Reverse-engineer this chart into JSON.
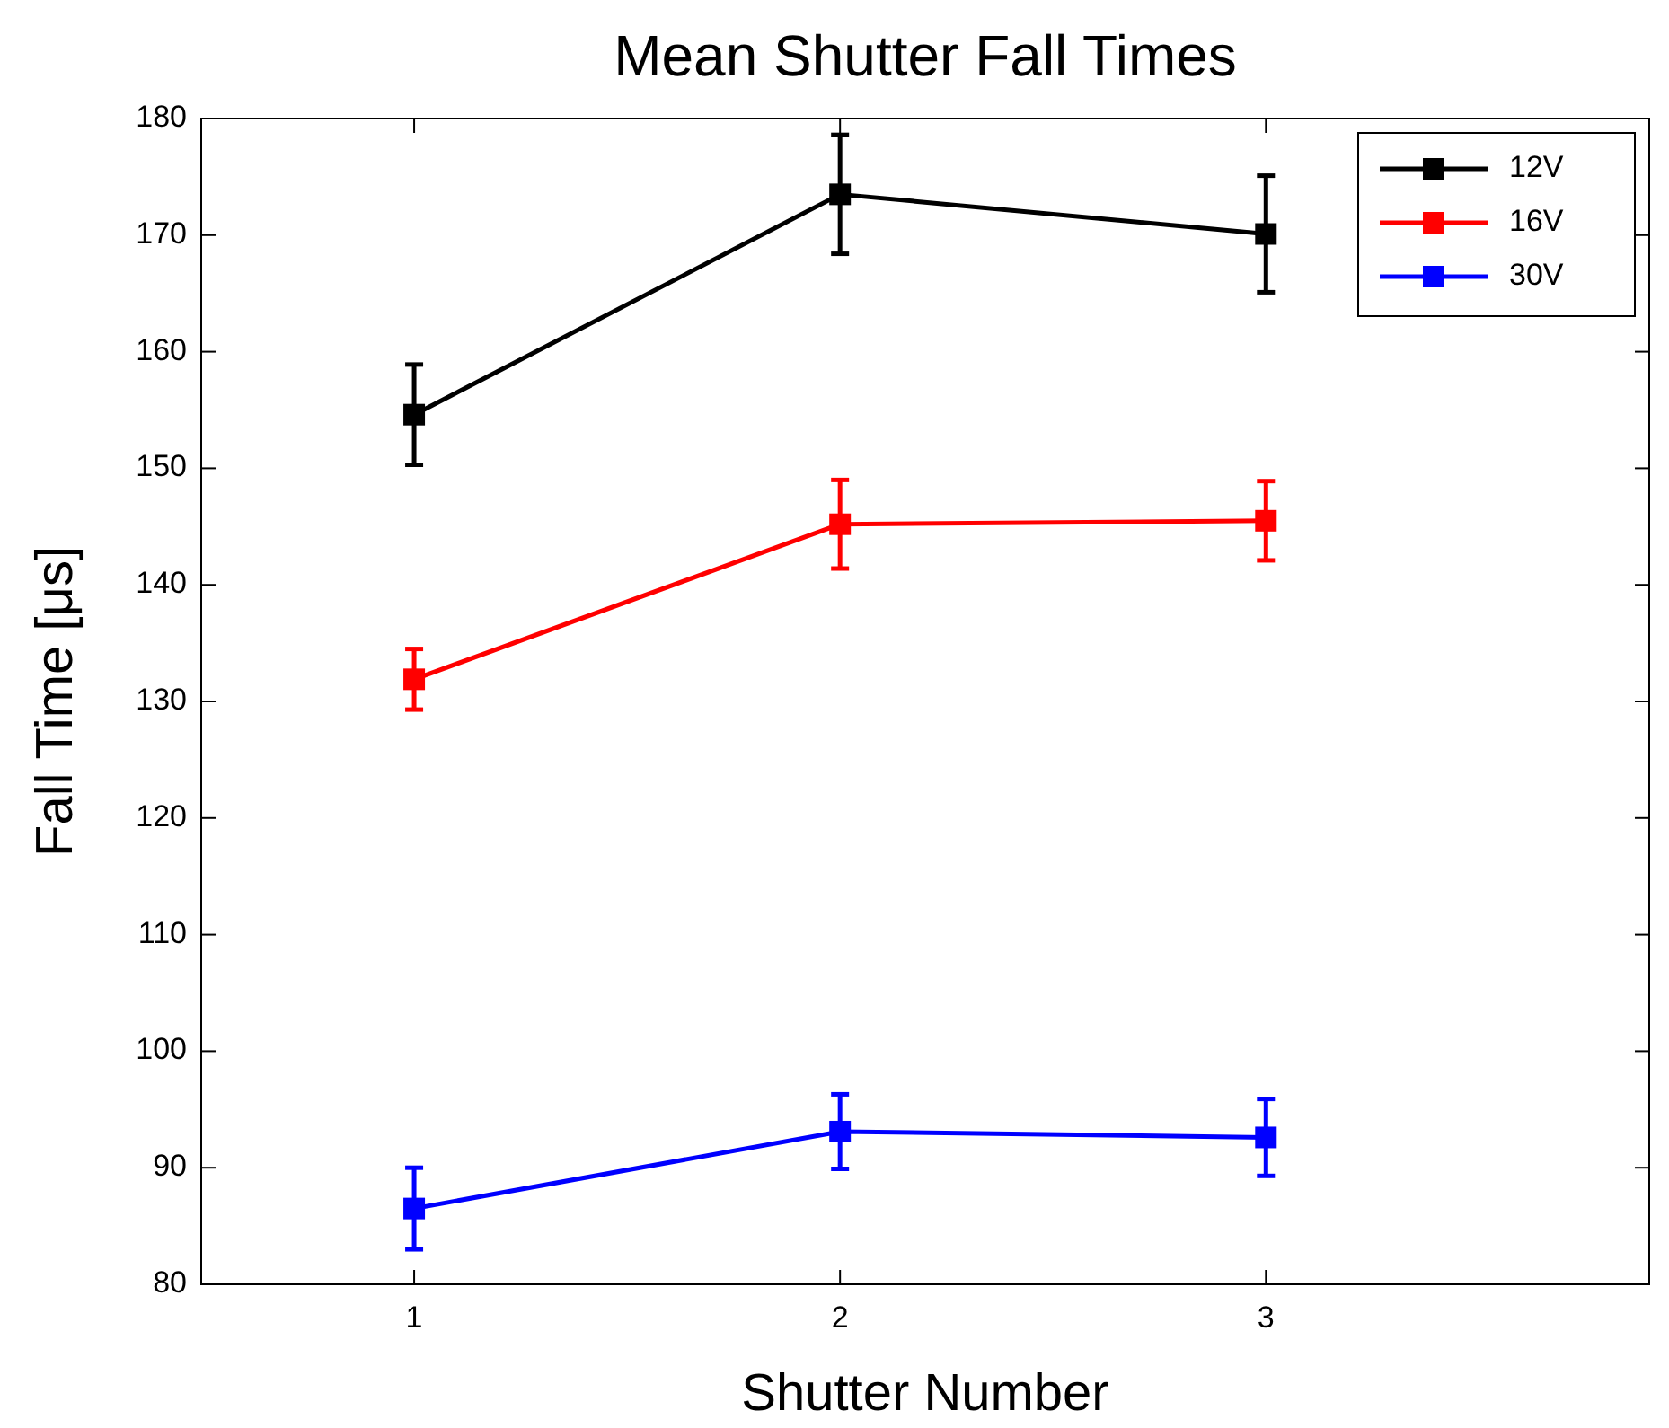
{
  "chart_data": {
    "type": "line",
    "title": "Mean Shutter Fall Times",
    "xlabel": "Shutter Number",
    "ylabel": "Fall Time [μs]",
    "x": [
      1,
      2,
      3
    ],
    "xlim": [
      0.5,
      3.9
    ],
    "xticks": [
      1,
      2,
      3
    ],
    "ylim": [
      80,
      180
    ],
    "yticks": [
      80,
      90,
      100,
      110,
      120,
      130,
      140,
      150,
      160,
      170,
      180
    ],
    "grid": false,
    "legend": "top right",
    "marker": "square",
    "line_style": "solid",
    "series": [
      {
        "name": "12V",
        "color": "#000000",
        "values": [
          154.6,
          173.5,
          170.1
        ],
        "errors": [
          4.3,
          5.1,
          5.0
        ]
      },
      {
        "name": "16V",
        "color": "#ff0000",
        "values": [
          131.9,
          145.2,
          145.5
        ],
        "errors": [
          2.6,
          3.8,
          3.4
        ]
      },
      {
        "name": "30V",
        "color": "#0000ff",
        "values": [
          86.5,
          93.1,
          92.6
        ],
        "errors": [
          3.5,
          3.2,
          3.3
        ]
      }
    ]
  }
}
